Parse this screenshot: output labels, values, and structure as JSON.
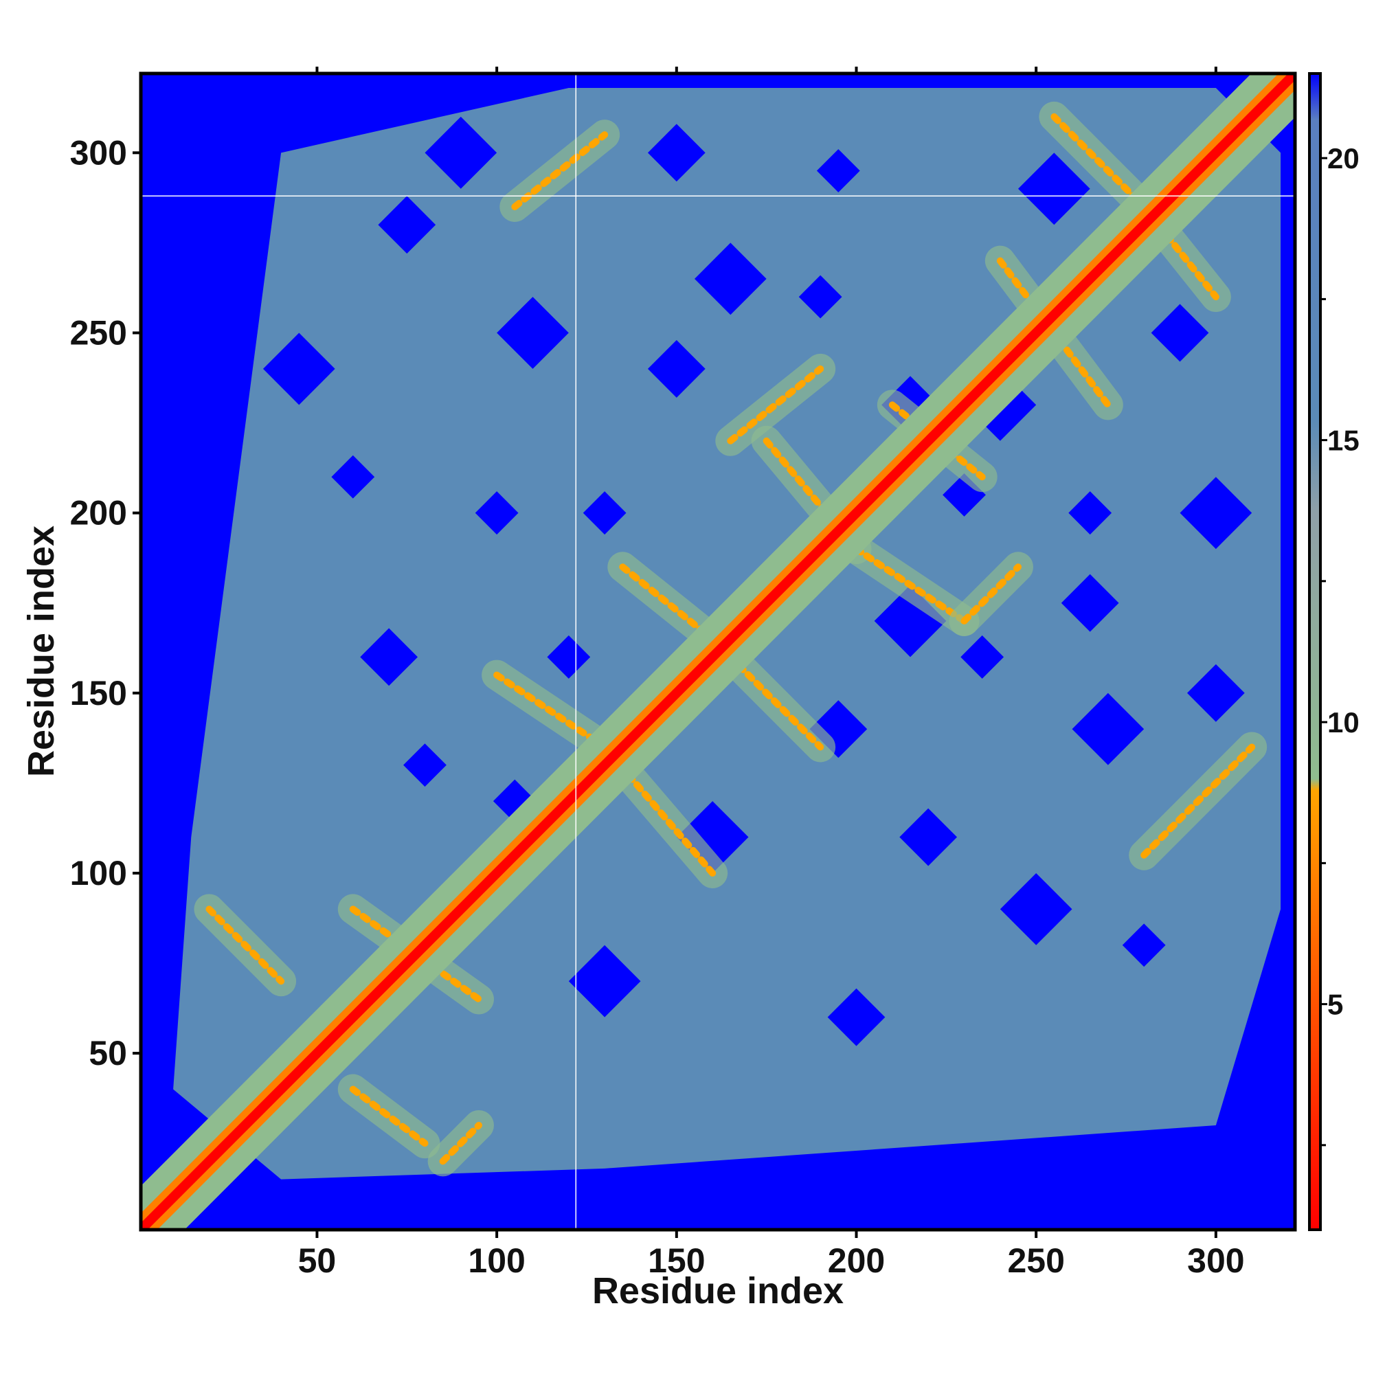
{
  "chart_data": {
    "type": "heatmap",
    "title": "",
    "xlabel": "Residue index",
    "ylabel": "Residue index",
    "xlim": [
      1,
      322
    ],
    "ylim": [
      1,
      322
    ],
    "x_ticks": [
      50,
      100,
      150,
      200,
      250,
      300
    ],
    "y_ticks": [
      50,
      100,
      150,
      200,
      250,
      300
    ],
    "colorbar": {
      "range": [
        1,
        21.5
      ],
      "ticks": [
        5,
        10,
        15,
        20
      ],
      "colors": [
        "#ff0000",
        "#ff7f00",
        "#ffa500",
        "#8fbc8f",
        "#5b8bb7",
        "#0000ff"
      ]
    },
    "description_values": {
      "diagonal_distance": 1,
      "background_distance": 21,
      "contact_bands": [
        {
          "x1": 20,
          "y1": 90,
          "x2": 40,
          "y2": 70
        },
        {
          "x1": 60,
          "y1": 40,
          "x2": 80,
          "y2": 25
        },
        {
          "x1": 85,
          "y1": 20,
          "x2": 95,
          "y2": 30
        },
        {
          "x1": 60,
          "y1": 90,
          "x2": 95,
          "y2": 65
        },
        {
          "x1": 100,
          "y1": 155,
          "x2": 130,
          "y2": 135
        },
        {
          "x1": 130,
          "y1": 135,
          "x2": 160,
          "y2": 100
        },
        {
          "x1": 135,
          "y1": 185,
          "x2": 160,
          "y2": 165
        },
        {
          "x1": 165,
          "y1": 160,
          "x2": 190,
          "y2": 135
        },
        {
          "x1": 165,
          "y1": 220,
          "x2": 190,
          "y2": 240
        },
        {
          "x1": 175,
          "y1": 220,
          "x2": 200,
          "y2": 190
        },
        {
          "x1": 200,
          "y1": 190,
          "x2": 230,
          "y2": 170
        },
        {
          "x1": 230,
          "y1": 170,
          "x2": 245,
          "y2": 185
        },
        {
          "x1": 210,
          "y1": 230,
          "x2": 235,
          "y2": 210
        },
        {
          "x1": 105,
          "y1": 285,
          "x2": 130,
          "y2": 305
        },
        {
          "x1": 240,
          "y1": 270,
          "x2": 270,
          "y2": 230
        },
        {
          "x1": 255,
          "y1": 310,
          "x2": 280,
          "y2": 285
        },
        {
          "x1": 280,
          "y1": 285,
          "x2": 300,
          "y2": 260
        },
        {
          "x1": 280,
          "y1": 105,
          "x2": 310,
          "y2": 135
        }
      ]
    }
  }
}
